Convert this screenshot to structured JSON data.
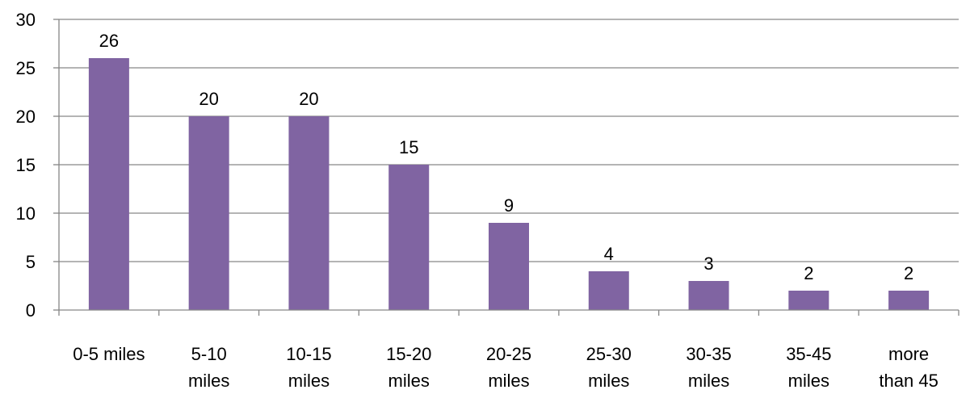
{
  "chart_data": {
    "type": "bar",
    "categories": [
      [
        "0-5 miles"
      ],
      [
        "5-10",
        "miles"
      ],
      [
        "10-15",
        "miles"
      ],
      [
        "15-20",
        "miles"
      ],
      [
        "20-25",
        "miles"
      ],
      [
        "25-30",
        "miles"
      ],
      [
        "30-35",
        "miles"
      ],
      [
        "35-45",
        "miles"
      ],
      [
        "more",
        "than 45"
      ]
    ],
    "values": [
      26,
      20,
      20,
      15,
      9,
      4,
      3,
      2,
      2
    ],
    "data_labels": [
      "26",
      "20",
      "20",
      "15",
      "9",
      "4",
      "3",
      "2",
      "2"
    ],
    "y_ticks": [
      "0",
      "5",
      "10",
      "15",
      "20",
      "25",
      "30"
    ],
    "ylim": [
      0,
      30
    ],
    "y_step": 5,
    "grid": true,
    "legend": "none",
    "colors": {
      "bar": "#8064A2",
      "grid": "#868686",
      "axis": "#868686",
      "text": "#000000"
    }
  }
}
